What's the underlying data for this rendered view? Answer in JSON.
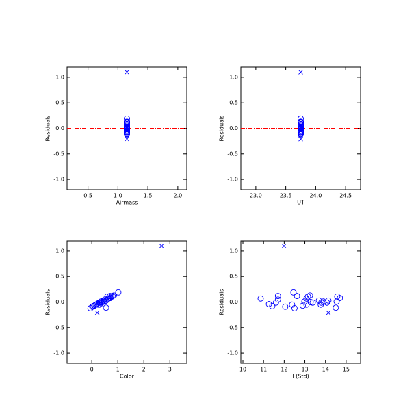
{
  "chart_data": [
    {
      "type": "scatter",
      "x_label": "Airmass",
      "y_label": "Residuals",
      "xlim": [
        0.15,
        2.15
      ],
      "ylim": [
        -1.2,
        1.2
      ],
      "xticks": [
        0.5,
        {
          "value": 1,
          "label": "1.0"
        },
        1.5,
        {
          "value": 2,
          "label": "2.0"
        }
      ],
      "yticks": [
        {
          "value": -1,
          "label": "-1.0"
        },
        -0.5,
        {
          "value": 0,
          "label": "0.0"
        },
        0.5,
        {
          "value": 1,
          "label": "1.0"
        }
      ],
      "reference_line": {
        "value": 0,
        "color": "#ff0000"
      },
      "series": [
        {
          "marker": "circle",
          "color": "#0000ff",
          "x": [
            1.15,
            1.15,
            1.15,
            1.15,
            1.15,
            1.15,
            1.15,
            1.15,
            1.15,
            1.15,
            1.15,
            1.15,
            1.15,
            1.15,
            1.15,
            1.15,
            1.15,
            1.15,
            1.15,
            1.15,
            1.15,
            1.15,
            1.15,
            1.15,
            1.15,
            1.15,
            1.15,
            1.15,
            1.15
          ],
          "values": [
            0.07,
            -0.04,
            -0.08,
            -0.01,
            0.05,
            0.12,
            -0.09,
            -0.05,
            0.19,
            -0.12,
            0.12,
            -0.07,
            0.01,
            -0.05,
            0.07,
            0.11,
            0.13,
            0.0,
            -0.01,
            0.03,
            -0.05,
            -0.01,
            0.01,
            -0.01,
            0.03,
            -0.11,
            0.01,
            0.11,
            0.08
          ]
        },
        {
          "marker": "cross",
          "color": "#0000ff",
          "x": [
            1.15,
            1.15
          ],
          "values": [
            1.1,
            -0.21
          ]
        }
      ]
    },
    {
      "type": "scatter",
      "x_label": "UT",
      "y_label": "Residuals",
      "xlim": [
        22.75,
        24.75
      ],
      "ylim": [
        -1.2,
        1.2
      ],
      "xticks": [
        {
          "value": 23,
          "label": "23.0"
        },
        23.5,
        {
          "value": 24,
          "label": "24.0"
        },
        24.5
      ],
      "yticks": [
        {
          "value": -1,
          "label": "-1.0"
        },
        -0.5,
        {
          "value": 0,
          "label": "0.0"
        },
        0.5,
        {
          "value": 1,
          "label": "1.0"
        }
      ],
      "reference_line": {
        "value": 0,
        "color": "#ff0000"
      },
      "series": [
        {
          "marker": "circle",
          "color": "#0000ff",
          "x": [
            23.75,
            23.75,
            23.75,
            23.75,
            23.75,
            23.75,
            23.75,
            23.75,
            23.75,
            23.75,
            23.75,
            23.75,
            23.75,
            23.75,
            23.75,
            23.75,
            23.75,
            23.75,
            23.75,
            23.75,
            23.75,
            23.75,
            23.75,
            23.75,
            23.75,
            23.75,
            23.75,
            23.75,
            23.75
          ],
          "values": [
            0.07,
            -0.04,
            -0.08,
            -0.01,
            0.05,
            0.12,
            -0.09,
            -0.05,
            0.19,
            -0.12,
            0.12,
            -0.07,
            0.01,
            -0.05,
            0.07,
            0.11,
            0.13,
            0.0,
            -0.01,
            0.03,
            -0.05,
            -0.01,
            0.01,
            -0.01,
            0.03,
            -0.11,
            0.01,
            0.11,
            0.08
          ]
        },
        {
          "marker": "cross",
          "color": "#0000ff",
          "x": [
            23.75,
            23.75
          ],
          "values": [
            1.1,
            -0.21
          ]
        }
      ]
    },
    {
      "type": "scatter",
      "x_label": "Color",
      "y_label": "Residuals",
      "xlim": [
        -0.95,
        3.65
      ],
      "ylim": [
        -1.2,
        1.2
      ],
      "xticks": [
        0,
        1,
        2,
        3
      ],
      "yticks": [
        {
          "value": -1,
          "label": "-1.0"
        },
        -0.5,
        {
          "value": 0,
          "label": "0.0"
        },
        0.5,
        {
          "value": 1,
          "label": "1.0"
        }
      ],
      "reference_line": {
        "value": 0,
        "color": "#ff0000"
      },
      "series": [
        {
          "marker": "circle",
          "color": "#0000ff",
          "x": [
            0.62,
            0.2,
            0.05,
            0.3,
            0.5,
            0.7,
            0.02,
            0.15,
            1.02,
            -0.05,
            0.8,
            0.1,
            0.35,
            0.25,
            0.65,
            0.75,
            0.85,
            0.4,
            0.38,
            0.45,
            0.3,
            0.28,
            0.42,
            0.33,
            0.55,
            0.55,
            0.48,
            0.6,
            0.72
          ],
          "values": [
            0.07,
            -0.04,
            -0.08,
            -0.01,
            0.05,
            0.12,
            -0.09,
            -0.05,
            0.19,
            -0.12,
            0.12,
            -0.07,
            0.01,
            -0.05,
            0.07,
            0.11,
            0.13,
            0.0,
            -0.01,
            0.03,
            -0.05,
            -0.01,
            0.01,
            -0.01,
            0.03,
            -0.11,
            0.01,
            0.11,
            0.08
          ]
        },
        {
          "marker": "cross",
          "color": "#0000ff",
          "x": [
            2.68,
            0.21
          ],
          "values": [
            1.1,
            -0.21
          ]
        }
      ]
    },
    {
      "type": "scatter",
      "x_label": "I (Std)",
      "y_label": "Residuals",
      "xlim": [
        9.9,
        15.7
      ],
      "ylim": [
        -1.2,
        1.2
      ],
      "xticks": [
        10,
        11,
        12,
        13,
        14,
        15
      ],
      "yticks": [
        {
          "value": -1,
          "label": "-1.0"
        },
        -0.5,
        {
          "value": 0,
          "label": "0.0"
        },
        0.5,
        {
          "value": 1,
          "label": "1.0"
        }
      ],
      "reference_line": {
        "value": 0,
        "color": "#ff0000"
      },
      "series": [
        {
          "marker": "circle",
          "color": "#0000ff",
          "x": [
            10.86,
            11.26,
            11.42,
            11.6,
            11.7,
            11.7,
            12.05,
            12.38,
            12.45,
            12.5,
            12.62,
            12.9,
            12.98,
            13.08,
            13.08,
            13.15,
            13.25,
            13.28,
            13.38,
            13.68,
            13.77,
            13.8,
            13.9,
            14.07,
            14.14,
            14.5,
            14.54,
            14.57,
            14.7
          ],
          "values": [
            0.07,
            -0.04,
            -0.08,
            -0.01,
            0.05,
            0.12,
            -0.09,
            -0.05,
            0.19,
            -0.12,
            0.12,
            -0.07,
            0.01,
            -0.05,
            0.07,
            0.11,
            0.13,
            0.0,
            -0.01,
            0.03,
            -0.05,
            -0.01,
            0.01,
            -0.01,
            0.03,
            -0.11,
            0.01,
            0.11,
            0.08
          ]
        },
        {
          "marker": "cross",
          "color": "#0000ff",
          "x": [
            11.99,
            14.14
          ],
          "values": [
            1.1,
            -0.21
          ]
        }
      ]
    }
  ]
}
